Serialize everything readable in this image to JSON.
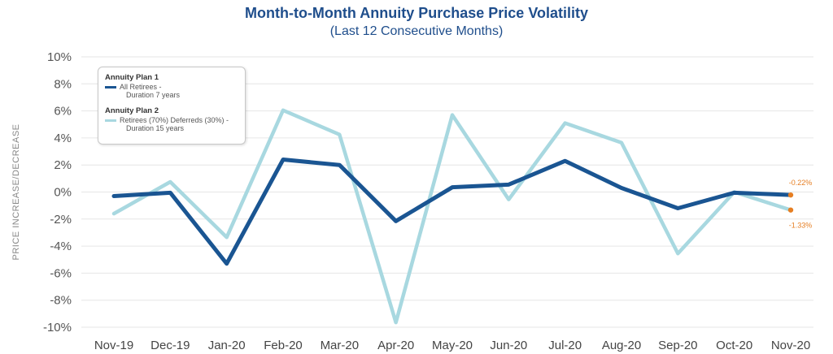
{
  "chart_data": {
    "type": "line",
    "title": "Month-to-Month Annuity Purchase Price Volatility",
    "subtitle": "(Last 12 Consecutive Months)",
    "ylabel": "PRICE INCREASE/DECREASE",
    "xlabel": "",
    "categories": [
      "Nov-19",
      "Dec-19",
      "Jan-20",
      "Feb-20",
      "Mar-20",
      "Apr-20",
      "May-20",
      "Jun-20",
      "Jul-20",
      "Aug-20",
      "Sep-20",
      "Oct-20",
      "Nov-20"
    ],
    "ylim": [
      -10,
      10
    ],
    "yticks": [
      10,
      8,
      6,
      4,
      2,
      0,
      -2,
      -4,
      -6,
      -8,
      -10
    ],
    "ytick_labels": [
      "10%",
      "8%",
      "6%",
      "4%",
      "2%",
      "0%",
      "-2%",
      "-4%",
      "-6%",
      "-8%",
      "-10%"
    ],
    "grid": true,
    "legend_position": "top-left",
    "series": [
      {
        "name": "All Retirees - Duration 7 years",
        "group": "Annuity Plan 1",
        "line1": "All Retirees -",
        "line2": "Duration 7 years",
        "color": "#1a5592",
        "values": [
          -0.3,
          -0.05,
          -5.3,
          2.4,
          2.0,
          -2.15,
          0.35,
          0.55,
          2.3,
          0.3,
          -1.2,
          -0.05,
          -0.22
        ],
        "end_label": "-0.22%"
      },
      {
        "name": "Retirees (70%) Deferreds (30%) - Duration 15 years",
        "group": "Annuity Plan 2",
        "line1": "Retirees (70%) Deferreds (30%) -",
        "line2": "Duration 15 years",
        "color": "#a8d8e0",
        "values": [
          -1.6,
          0.75,
          -3.35,
          6.05,
          4.25,
          -9.65,
          5.7,
          -0.55,
          5.1,
          3.65,
          -4.55,
          0.0,
          -1.33
        ],
        "end_label": "-1.33%"
      }
    ],
    "end_marker_color": "#e67e22"
  }
}
